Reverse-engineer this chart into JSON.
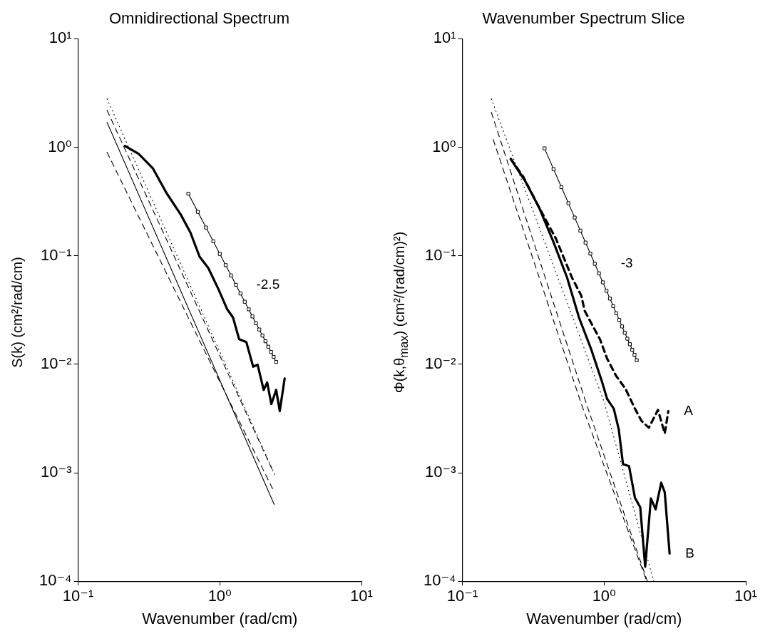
{
  "chart_data": [
    {
      "type": "line",
      "title": "Omnidirectional Spectrum",
      "xlabel": "Wavenumber (rad/cm)",
      "ylabel": "S(k)  (cm²/rad/cm)",
      "log": "xy",
      "xlim": [
        0.1,
        10
      ],
      "ylim": [
        0.0001,
        10
      ],
      "xticks": [
        {
          "value": 0.1,
          "label": "10⁻¹"
        },
        {
          "value": 1,
          "label": "10⁰"
        },
        {
          "value": 10,
          "label": "10¹"
        }
      ],
      "yticks": [
        {
          "value": 0.0001,
          "label": "10⁻⁴"
        },
        {
          "value": 0.001,
          "label": "10⁻³"
        },
        {
          "value": 0.01,
          "label": "10⁻²"
        },
        {
          "value": 0.1,
          "label": "10⁻¹"
        },
        {
          "value": 1,
          "label": "10⁰"
        },
        {
          "value": 10,
          "label": "10¹"
        }
      ],
      "annotations": [
        "-2.5"
      ],
      "series": [
        {
          "color": "#000000",
          "line_style": "solid",
          "x": [
            0.214,
            0.268,
            0.337,
            0.42,
            0.53,
            0.62,
            0.72,
            0.83,
            0.98,
            1.13,
            1.24,
            1.37,
            1.54,
            1.72,
            1.85,
            2.04,
            2.16,
            2.31,
            2.5,
            2.65,
            2.87
          ],
          "values": [
            1.03,
            0.87,
            0.64,
            0.38,
            0.24,
            0.164,
            0.098,
            0.077,
            0.049,
            0.032,
            0.027,
            0.017,
            0.016,
            0.0095,
            0.0099,
            0.0058,
            0.0068,
            0.0043,
            0.0058,
            0.0037,
            0.0074
          ]
        },
        {
          "color": "#000000",
          "line_style": "solid",
          "marker": "square",
          "x": [
            0.6,
            0.7,
            0.8,
            0.9,
            1.0,
            1.1,
            1.2,
            1.3,
            1.4,
            1.5,
            1.6,
            1.7,
            1.8,
            1.9,
            2.0,
            2.1,
            2.2,
            2.3,
            2.4,
            2.5
          ],
          "values": [
            0.373,
            0.254,
            0.182,
            0.136,
            0.104,
            0.082,
            0.0659,
            0.054,
            0.0449,
            0.0377,
            0.0321,
            0.0276,
            0.0239,
            0.0209,
            0.0184,
            0.0163,
            0.0145,
            0.013,
            0.0117,
            0.0105
          ]
        },
        {
          "color": "#000000",
          "line_style": "dotted",
          "x": [
            0.16,
            2.45
          ],
          "values": [
            2.8,
            0.00095
          ]
        },
        {
          "color": "#000000",
          "line_style": "dashed",
          "x": [
            0.16,
            2.4
          ],
          "values": [
            2.2,
            0.001
          ]
        },
        {
          "color": "#000000",
          "line_style": "solid",
          "x": [
            0.16,
            2.42
          ],
          "values": [
            1.7,
            0.00051
          ]
        },
        {
          "color": "#000000",
          "line_style": "dashed",
          "x": [
            0.16,
            1.0,
            2.4
          ],
          "values": [
            0.9,
            0.0069,
            0.00068
          ]
        }
      ]
    },
    {
      "type": "line",
      "title": "Wavenumber Spectrum Slice",
      "xlabel": "Wavenumber (rad/cm)",
      "ylabel": "Φ(k,θ$_{max}$)  (cm²/(rad/cm)²)",
      "log": "xy",
      "xlim": [
        0.1,
        10
      ],
      "ylim": [
        0.0001,
        10
      ],
      "xticks": [
        {
          "value": 0.1,
          "label": "10⁻¹"
        },
        {
          "value": 1,
          "label": "10⁰"
        },
        {
          "value": 10,
          "label": "10¹"
        }
      ],
      "yticks": [
        {
          "value": 0.0001,
          "label": "10⁻⁴"
        },
        {
          "value": 0.001,
          "label": "10⁻³"
        },
        {
          "value": 0.01,
          "label": "10⁻²"
        },
        {
          "value": 0.1,
          "label": "10⁻¹"
        },
        {
          "value": 1,
          "label": "10⁰"
        },
        {
          "value": 10,
          "label": "10¹"
        }
      ],
      "annotations": [
        "-3"
      ],
      "series": [
        {
          "name": "A",
          "color": "#000000",
          "line_style": "dashed",
          "x": [
            0.22,
            0.27,
            0.348,
            0.457,
            0.593,
            0.69,
            0.73,
            0.935,
            1.05,
            1.21,
            1.42,
            1.65,
            1.84,
            2.07,
            2.4,
            2.68,
            2.84
          ],
          "values": [
            0.78,
            0.53,
            0.278,
            0.144,
            0.063,
            0.043,
            0.031,
            0.017,
            0.0113,
            0.0079,
            0.0059,
            0.0039,
            0.003,
            0.0026,
            0.0038,
            0.0023,
            0.0037
          ]
        },
        {
          "name": "B",
          "color": "#000000",
          "line_style": "solid",
          "x": [
            0.219,
            0.277,
            0.348,
            0.437,
            0.548,
            0.665,
            0.81,
            0.97,
            1.05,
            1.17,
            1.27,
            1.36,
            1.5,
            1.65,
            1.8,
            1.95,
            2.14,
            2.31,
            2.53,
            2.68,
            2.9
          ],
          "values": [
            0.78,
            0.49,
            0.278,
            0.136,
            0.063,
            0.027,
            0.0138,
            0.0068,
            0.0048,
            0.0039,
            0.0025,
            0.0012,
            0.00115,
            0.00059,
            0.00048,
            0.000136,
            0.00058,
            0.00046,
            0.00081,
            0.00066,
            0.00018
          ]
        },
        {
          "color": "#000000",
          "line_style": "solid",
          "marker": "square",
          "x": [
            0.38,
            0.44,
            0.5,
            0.56,
            0.62,
            0.68,
            0.74,
            0.8,
            0.86,
            0.92,
            0.98,
            1.04,
            1.1,
            1.16,
            1.22,
            1.28,
            1.34,
            1.4,
            1.46,
            1.52,
            1.58,
            1.64,
            1.7
          ],
          "values": [
            0.977,
            0.629,
            0.429,
            0.305,
            0.225,
            0.1705,
            0.1323,
            0.1047,
            0.0843,
            0.0688,
            0.0569,
            0.0476,
            0.0403,
            0.0343,
            0.0295,
            0.0256,
            0.0223,
            0.0195,
            0.0172,
            0.0153,
            0.0136,
            0.0122,
            0.0109
          ]
        },
        {
          "color": "#000000",
          "line_style": "dotted",
          "x": [
            0.16,
            1.0,
            2.24
          ],
          "values": [
            2.8,
            0.0045,
            0.0001
          ]
        },
        {
          "color": "#000000",
          "line_style": "dashed",
          "x": [
            0.16,
            0.76,
            2.02
          ],
          "values": [
            2.1,
            0.0041,
            0.0001
          ]
        },
        {
          "color": "#000000",
          "line_style": "dashed",
          "x": [
            0.165,
            0.7,
            2.0
          ],
          "values": [
            1.18,
            0.0041,
            0.0001
          ]
        }
      ]
    }
  ]
}
